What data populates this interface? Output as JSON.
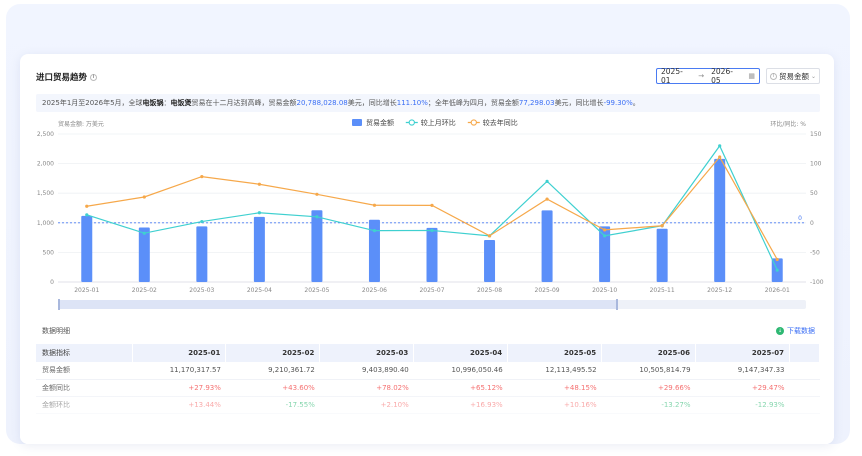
{
  "card": {
    "title": "进口贸易趋势",
    "date_start": "2025-01",
    "date_arrow": "→",
    "date_end": "2026-05",
    "metric_select": "贸易金额"
  },
  "summary": {
    "p1": "2025年1月至2026年5月，全球",
    "p2": "电饭锅",
    "p3": "：",
    "p4": "电饭煲",
    "p5": "贸易在十二月达到高峰，贸易金额",
    "p6": "20,788,028.08",
    "p7": "美元，同比增长",
    "p8": "111.10%",
    "p9": "；全年低峰为四月，贸易金额",
    "p10": "77,298.03",
    "p11": "美元，同比增长",
    "p12": "-99.30%",
    "p13": "。"
  },
  "chart_data": {
    "type": "bar",
    "categories": [
      "2025-01",
      "2025-02",
      "2025-03",
      "2025-04",
      "2025-05",
      "2025-06",
      "2025-07",
      "2025-08",
      "2025-09",
      "2025-10",
      "2025-11",
      "2025-12",
      "2026-01"
    ],
    "ylabel": "贸易金额: 万美元",
    "y2label": "环比/同比: %",
    "ylim": [
      0,
      2500
    ],
    "y2lim": [
      -100,
      150
    ],
    "yticks": [
      "0",
      "500",
      "1,000",
      "1,500",
      "2,000",
      "2,500"
    ],
    "y2ticks": [
      "-100",
      "-50",
      "0",
      "50",
      "100",
      "150"
    ],
    "zero_marker": "0",
    "legend_position": "top-center",
    "series": [
      {
        "name": "贸易金额",
        "kind": "bar",
        "axis": "left",
        "color": "#5b8ff9",
        "values": [
          1117,
          921,
          940,
          1100,
          1211,
          1051,
          915,
          710,
          1210,
          940,
          900,
          2080,
          400
        ]
      },
      {
        "name": "较上月环比",
        "kind": "line",
        "axis": "right",
        "color": "#3fd0d0",
        "values": [
          13.44,
          -17.55,
          2.1,
          16.93,
          10.16,
          -13.27,
          -12.93,
          -22,
          70,
          -22,
          -5,
          130,
          -80
        ]
      },
      {
        "name": "较去年同比",
        "kind": "line",
        "axis": "right",
        "color": "#f6a84a",
        "values": [
          27.93,
          43.6,
          78.02,
          65.12,
          48.15,
          29.66,
          29.47,
          -22,
          40,
          -12,
          -5,
          111.1,
          -62
        ]
      }
    ]
  },
  "table": {
    "section_title": "数据明细",
    "download_label": "下载数据",
    "headers": [
      "数据指标",
      "2025-01",
      "2025-02",
      "2025-03",
      "2025-04",
      "2025-05",
      "2025-06",
      "2025-07"
    ],
    "rows": [
      {
        "label": "贸易金额",
        "cells": [
          "11,170,317.57",
          "9,210,361.72",
          "9,403,890.40",
          "10,996,050.46",
          "12,113,495.52",
          "10,505,814.79",
          "9,147,347.33"
        ],
        "classes": [
          "",
          "",
          "",
          "",
          "",
          "",
          ""
        ]
      },
      {
        "label": "金额同比",
        "cells": [
          "+27.93%",
          "+43.60%",
          "+78.02%",
          "+65.12%",
          "+48.15%",
          "+29.66%",
          "+29.47%"
        ],
        "classes": [
          "up",
          "up",
          "up",
          "up",
          "up",
          "up",
          "up"
        ]
      },
      {
        "label": "金额环比",
        "cells": [
          "+13.44%",
          "-17.55%",
          "+2.10%",
          "+16.93%",
          "+10.16%",
          "-13.27%",
          "-12.93%"
        ],
        "classes": [
          "up",
          "down",
          "up",
          "up",
          "up",
          "down",
          "down"
        ]
      }
    ]
  }
}
